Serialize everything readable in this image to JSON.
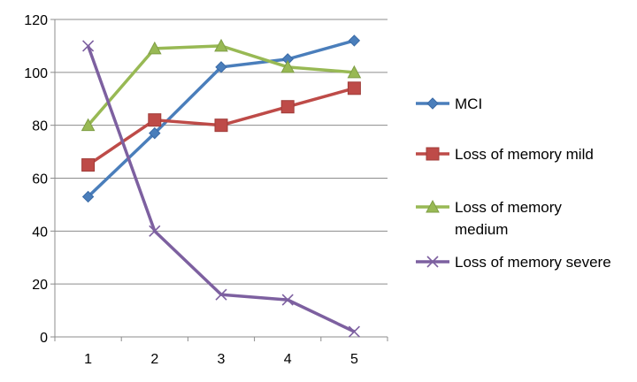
{
  "chart_data": {
    "type": "line",
    "title": "",
    "xlabel": "",
    "ylabel": "",
    "x": [
      1,
      2,
      3,
      4,
      5
    ],
    "ylim": [
      0,
      120
    ],
    "y_ticks": [
      0,
      20,
      40,
      60,
      80,
      100,
      120
    ],
    "grid": "horizontal",
    "legend_position": "right",
    "series": [
      {
        "name": "MCI",
        "values": [
          53,
          77,
          102,
          105,
          112
        ],
        "color": "#4a7ebb",
        "marker": "diamond"
      },
      {
        "name": "Loss of memory mild",
        "values": [
          65,
          82,
          80,
          87,
          94
        ],
        "color": "#be4b48",
        "marker": "square"
      },
      {
        "name": "Loss of memory medium",
        "legend_lines": [
          "Loss of memory",
          "medium"
        ],
        "values": [
          80,
          109,
          110,
          102,
          100
        ],
        "color": "#98b954",
        "marker": "triangle"
      },
      {
        "name": "Loss of memory severe",
        "values": [
          110,
          40,
          16,
          14,
          2
        ],
        "color": "#7d60a0",
        "marker": "x"
      }
    ]
  }
}
